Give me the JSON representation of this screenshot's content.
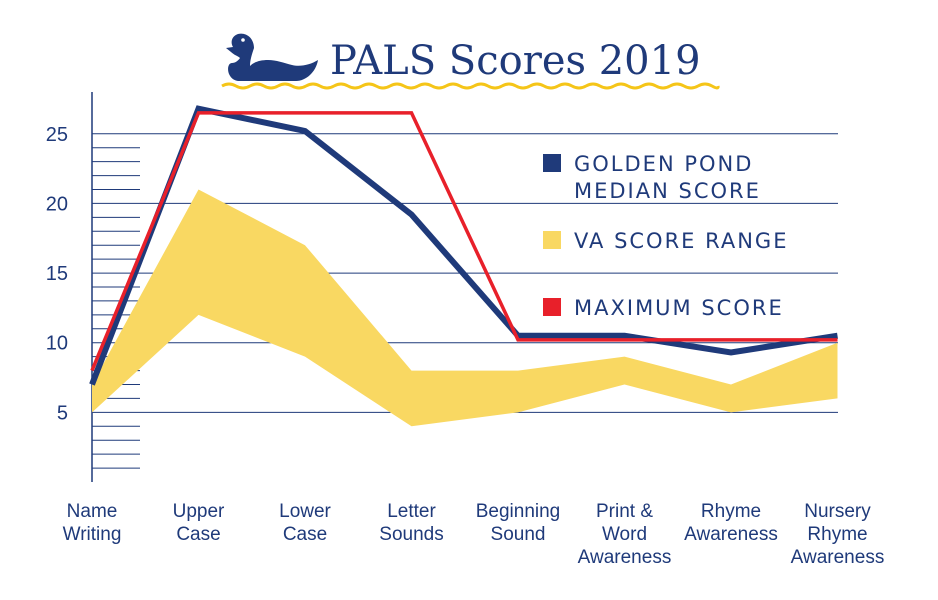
{
  "chart_data": {
    "type": "line",
    "title": "PALS Scores 2019",
    "categories": [
      [
        "Name",
        "Writing"
      ],
      [
        "Upper",
        "Case"
      ],
      [
        "Lower",
        "Case"
      ],
      [
        "Letter",
        "Sounds"
      ],
      [
        "Beginning",
        "Sound"
      ],
      [
        "Print &",
        "Word",
        "Awareness"
      ],
      [
        "Rhyme",
        "Awareness"
      ],
      [
        "Nursery",
        "Rhyme",
        "Awareness"
      ]
    ],
    "y_ticks": [
      "5",
      "10",
      "15",
      "20",
      "25"
    ],
    "ylim": [
      0,
      28
    ],
    "series": [
      {
        "name": [
          "GOLDEN POND",
          "MEDIAN SCORE"
        ],
        "color": "#1f3a7a",
        "kind": "line",
        "values": [
          7,
          26.8,
          25.2,
          19.2,
          10.5,
          10.5,
          9.3,
          10.5
        ]
      },
      {
        "name": [
          "VA SCORE RANGE"
        ],
        "color": "#f9d862",
        "kind": "range",
        "low": [
          5,
          12,
          9,
          4,
          5,
          7,
          5,
          6
        ],
        "high": [
          7,
          21,
          17,
          8,
          8,
          9,
          7,
          10
        ]
      },
      {
        "name": [
          "MAXIMUM SCORE"
        ],
        "color": "#e8202a",
        "kind": "line",
        "values": [
          8,
          26.5,
          26.5,
          26.5,
          10.2,
          10.2,
          10.2,
          10.2
        ]
      }
    ]
  }
}
